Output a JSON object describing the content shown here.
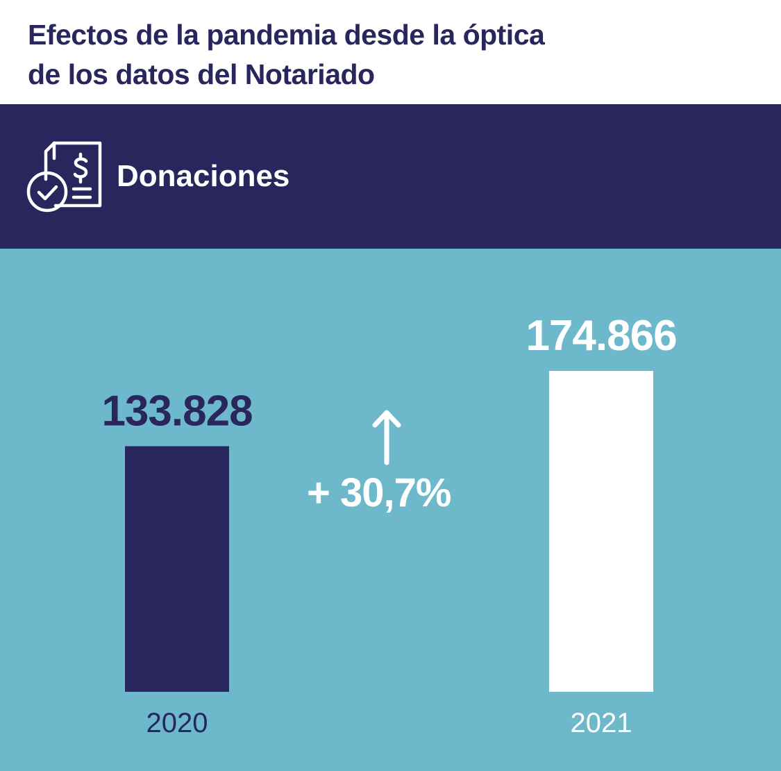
{
  "title_lines": [
    "Efectos de la pandemia desde la óptica",
    "de los datos del Notariado"
  ],
  "section": {
    "label": "Donaciones",
    "icon": "document-dollar-check-icon"
  },
  "colors": {
    "navy": "#28265c",
    "teal": "#6db9cb",
    "white": "#ffffff"
  },
  "change": {
    "label": "+ 30,7%",
    "icon": "arrow-up-icon"
  },
  "chart_data": {
    "type": "bar",
    "categories": [
      "2020",
      "2021"
    ],
    "values": [
      133828,
      174866
    ],
    "value_labels": [
      "133.828",
      "174.866"
    ],
    "bar_colors": [
      "#28265c",
      "#ffffff"
    ],
    "label_colors": [
      "#28265c",
      "#ffffff"
    ],
    "tick_colors": [
      "#28265c",
      "#ffffff"
    ],
    "ylim": [
      0,
      174866
    ],
    "grid": false,
    "legend": "none"
  }
}
